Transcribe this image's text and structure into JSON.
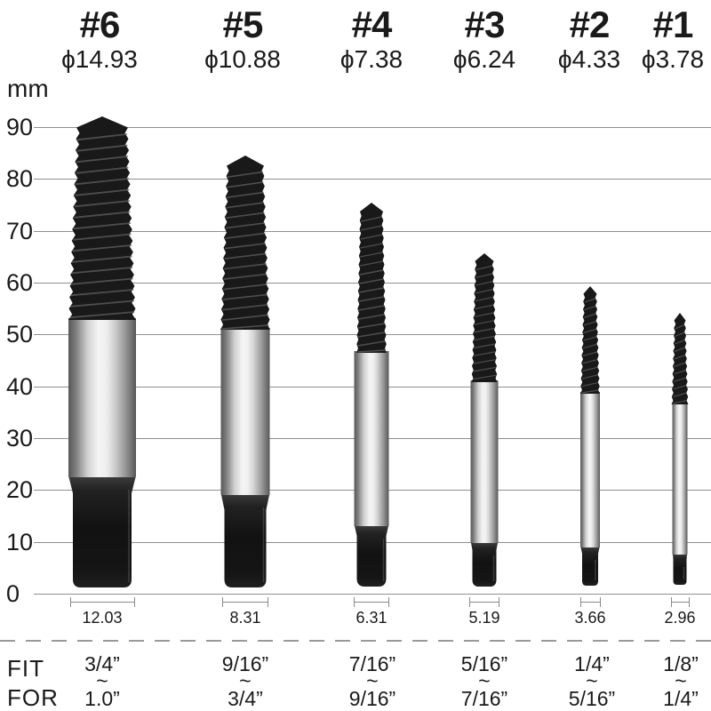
{
  "header": {
    "columns": [
      {
        "number": "#6",
        "diameter": "ϕ14.93"
      },
      {
        "number": "#5",
        "diameter": "ϕ10.88"
      },
      {
        "number": "#4",
        "diameter": "ϕ7.38"
      },
      {
        "number": "#3",
        "diameter": "ϕ6.24"
      },
      {
        "number": "#2",
        "diameter": "ϕ4.33"
      },
      {
        "number": "#1",
        "diameter": "ϕ3.78"
      }
    ]
  },
  "axis": {
    "unit": "mm",
    "ticks": [
      "90",
      "80",
      "70",
      "60",
      "50",
      "40",
      "30",
      "20",
      "10",
      "0"
    ]
  },
  "shank_measurements": [
    "12.03",
    "8.31",
    "6.31",
    "5.19",
    "3.66",
    "2.96"
  ],
  "fit_table": {
    "row_label_top": "FIT",
    "row_label_bottom": "FOR",
    "tilde": "~",
    "ranges": [
      {
        "from": "3/4”",
        "to": "1.0”"
      },
      {
        "from": "9/16”",
        "to": "3/4”"
      },
      {
        "from": "7/16”",
        "to": "9/16”"
      },
      {
        "from": "5/16”",
        "to": "7/16”"
      },
      {
        "from": "1/4”",
        "to": "5/16”"
      },
      {
        "from": "1/8”",
        "to": "1/4”"
      }
    ]
  },
  "chart_data": {
    "type": "table",
    "title": "Screw extractor set size chart",
    "ylabel": "mm",
    "ylim": [
      0,
      90
    ],
    "grid": true,
    "categories": [
      "#6",
      "#5",
      "#4",
      "#3",
      "#2",
      "#1"
    ],
    "series": [
      {
        "name": "thread_diameter_mm",
        "values": [
          14.93,
          10.88,
          7.38,
          6.24,
          4.33,
          3.78
        ]
      },
      {
        "name": "shank_width_mm",
        "values": [
          12.03,
          8.31,
          6.31,
          5.19,
          3.66,
          2.96
        ]
      },
      {
        "name": "depicted_overall_length_mm",
        "values": [
          90,
          84,
          75,
          66,
          59,
          54
        ]
      },
      {
        "name": "fits_screw_range_inch",
        "values": [
          "3/4–1.0",
          "9/16–3/4",
          "7/16–9/16",
          "5/16–7/16",
          "1/4–5/16",
          "1/8–1/4"
        ]
      }
    ]
  },
  "colors": {
    "background": "#ffffff",
    "text": "#1a1a1a",
    "gridline": "#8f8f8f",
    "thread_black": "#191919",
    "shank_silver": "#d9d9d9"
  }
}
